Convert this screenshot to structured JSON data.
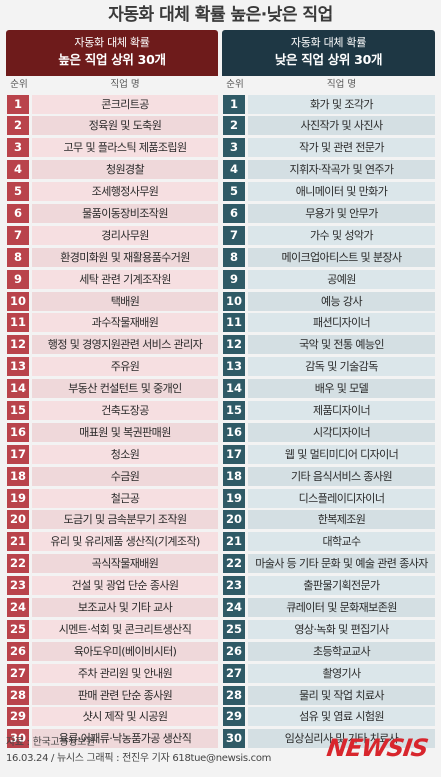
{
  "title": "자동화 대체 확률 높은·낮은 직업",
  "left": {
    "header_sub": "자동화 대체 확률",
    "header_main": "높은 직업 상위 30개",
    "col_rank": "순위",
    "col_name": "직업 명",
    "color": "#6e1b1b",
    "rows": [
      {
        "rank": "1",
        "name": "콘크리트공"
      },
      {
        "rank": "2",
        "name": "정육원 및 도축원"
      },
      {
        "rank": "3",
        "name": "고무 및 플라스틱 제품조립원"
      },
      {
        "rank": "4",
        "name": "청원경찰"
      },
      {
        "rank": "5",
        "name": "조세행정사무원"
      },
      {
        "rank": "6",
        "name": "물품이동장비조작원"
      },
      {
        "rank": "7",
        "name": "경리사무원"
      },
      {
        "rank": "8",
        "name": "환경미화원 및 재활용품수거원"
      },
      {
        "rank": "9",
        "name": "세탁 관련 기계조작원"
      },
      {
        "rank": "10",
        "name": "택배원"
      },
      {
        "rank": "11",
        "name": "과수작물재배원"
      },
      {
        "rank": "12",
        "name": "행정 및 경영지원관련 서비스 관리자"
      },
      {
        "rank": "13",
        "name": "주유원"
      },
      {
        "rank": "14",
        "name": "부동산 컨설턴트 및 중개인"
      },
      {
        "rank": "15",
        "name": "건축도장공"
      },
      {
        "rank": "16",
        "name": "매표원 및 복권판매원"
      },
      {
        "rank": "17",
        "name": "청소원"
      },
      {
        "rank": "18",
        "name": "수금원"
      },
      {
        "rank": "19",
        "name": "철근공"
      },
      {
        "rank": "20",
        "name": "도금기 및 금속분무기 조작원"
      },
      {
        "rank": "21",
        "name": "유리 및 유리제품 생산직(기계조작)"
      },
      {
        "rank": "22",
        "name": "곡식작물재배원"
      },
      {
        "rank": "23",
        "name": "건설 및 광업 단순 종사원"
      },
      {
        "rank": "24",
        "name": "보조교사 및 기타 교사"
      },
      {
        "rank": "25",
        "name": "시멘트·석회 및 콘크리트생산직"
      },
      {
        "rank": "26",
        "name": "육아도우미(베이비시터)"
      },
      {
        "rank": "27",
        "name": "주차 관리원 및 안내원"
      },
      {
        "rank": "28",
        "name": "판매 관련 단순 종사원"
      },
      {
        "rank": "29",
        "name": "샷시 제작 및 시공원"
      },
      {
        "rank": "30",
        "name": "육류·어패류·낙농품가공 생산직"
      }
    ]
  },
  "right": {
    "header_sub": "자동화 대체 확률",
    "header_main": "낮은 직업 상위 30개",
    "col_rank": "순위",
    "col_name": "직업 명",
    "color": "#1e3744",
    "rows": [
      {
        "rank": "1",
        "name": "화가 및 조각가"
      },
      {
        "rank": "2",
        "name": "사진작가 및 사진사"
      },
      {
        "rank": "3",
        "name": "작가 및 관련 전문가"
      },
      {
        "rank": "4",
        "name": "지휘자·작곡가 및 연주가"
      },
      {
        "rank": "5",
        "name": "애니메이터 및 만화가"
      },
      {
        "rank": "6",
        "name": "무용가 및 안무가"
      },
      {
        "rank": "7",
        "name": "가수 및 성악가"
      },
      {
        "rank": "8",
        "name": "메이크업아티스트 및 분장사"
      },
      {
        "rank": "9",
        "name": "공예원"
      },
      {
        "rank": "10",
        "name": "예능 강사"
      },
      {
        "rank": "11",
        "name": "패션디자이너"
      },
      {
        "rank": "12",
        "name": "국악 및 전통 예능인"
      },
      {
        "rank": "13",
        "name": "감독 및 기술감독"
      },
      {
        "rank": "14",
        "name": "배우 및 모델"
      },
      {
        "rank": "15",
        "name": "제품디자이너"
      },
      {
        "rank": "16",
        "name": "시각디자이너"
      },
      {
        "rank": "17",
        "name": "웹 및 멀티미디어 디자이너"
      },
      {
        "rank": "18",
        "name": "기타 음식서비스 종사원"
      },
      {
        "rank": "19",
        "name": "디스플레이디자이너"
      },
      {
        "rank": "20",
        "name": "한복제조원"
      },
      {
        "rank": "21",
        "name": "대학교수"
      },
      {
        "rank": "22",
        "name": "마술사 등 기타 문화 및 예술 관련 종사자"
      },
      {
        "rank": "23",
        "name": "출판물기획전문가"
      },
      {
        "rank": "24",
        "name": "큐레이터 및 문화재보존원"
      },
      {
        "rank": "25",
        "name": "영상·녹화 및 편집기사"
      },
      {
        "rank": "26",
        "name": "초등학교교사"
      },
      {
        "rank": "27",
        "name": "촬영기사"
      },
      {
        "rank": "28",
        "name": "물리 및 작업 치료사"
      },
      {
        "rank": "29",
        "name": "섬유 및 염료 시험원"
      },
      {
        "rank": "30",
        "name": "임상심리사 및 기타 치료사"
      }
    ]
  },
  "footer": {
    "source": "자료 : 한국고용정보원",
    "credit": "16.03.24 / 뉴시스 그래픽 : 전진우 기자 618tue@newsis.com",
    "logo": "NEWSIS",
    "logo_color": "#d8262d"
  }
}
